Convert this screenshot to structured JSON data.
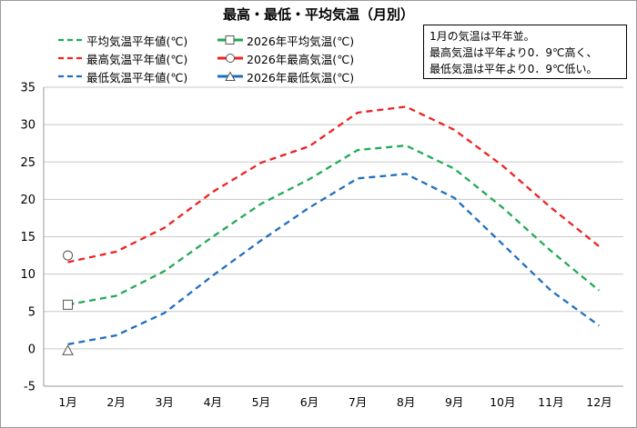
{
  "chart_data": {
    "type": "line",
    "title": "最高・最低・平均気温（月別）",
    "categories": [
      "1月",
      "2月",
      "3月",
      "4月",
      "5月",
      "6月",
      "7月",
      "8月",
      "9月",
      "10月",
      "11月",
      "12月"
    ],
    "ylim": [
      -5,
      35
    ],
    "yticks": [
      -5,
      0,
      5,
      10,
      15,
      20,
      25,
      30,
      35
    ],
    "grid": true,
    "legend_position": "top-left",
    "note": [
      "1月の気温は平年並。",
      "最高気温は平年より0．9℃高く、",
      "最低気温は平年より0．9℃低い。"
    ],
    "series": [
      {
        "name": "平均気温平年値(℃)",
        "style": "dashed",
        "color": "#22aa55",
        "values": [
          5.9,
          7.1,
          10.4,
          15.0,
          19.4,
          22.7,
          26.6,
          27.2,
          24.1,
          18.9,
          13.1,
          7.8
        ]
      },
      {
        "name": "最高気温平年値(℃)",
        "style": "dashed",
        "color": "#ee2222",
        "values": [
          11.6,
          13.0,
          16.2,
          21.0,
          24.9,
          27.1,
          31.6,
          32.4,
          29.3,
          24.5,
          18.9,
          13.7
        ]
      },
      {
        "name": "最低気温平年値(℃)",
        "style": "dashed",
        "color": "#1f6fbf",
        "values": [
          0.6,
          1.8,
          4.8,
          9.8,
          14.5,
          18.9,
          22.8,
          23.4,
          20.2,
          14.0,
          7.8,
          3.1
        ]
      },
      {
        "name": "2026年平均気温(℃)",
        "style": "solid",
        "marker": "square",
        "color": "#22aa55",
        "values": [
          5.9,
          null,
          null,
          null,
          null,
          null,
          null,
          null,
          null,
          null,
          null,
          null
        ]
      },
      {
        "name": "2026年最高気温(℃)",
        "style": "solid",
        "marker": "circle",
        "color": "#ee2222",
        "values": [
          12.5,
          null,
          null,
          null,
          null,
          null,
          null,
          null,
          null,
          null,
          null,
          null
        ]
      },
      {
        "name": "2026年最低気温(℃)",
        "style": "solid",
        "marker": "triangle",
        "color": "#1f6fbf",
        "values": [
          -0.3,
          null,
          null,
          null,
          null,
          null,
          null,
          null,
          null,
          null,
          null,
          null
        ]
      }
    ]
  }
}
